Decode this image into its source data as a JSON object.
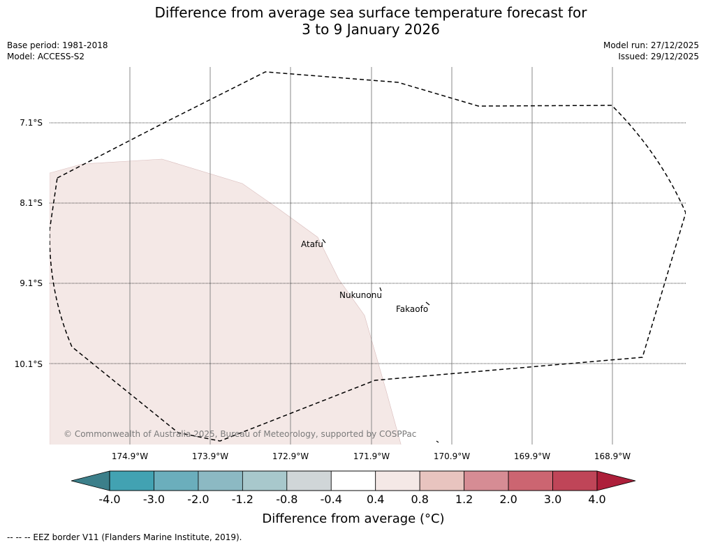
{
  "title_line1": "Difference from average sea surface temperature forecast for",
  "title_line2": "3 to 9 January 2026",
  "base_period": "Base period: 1981-2018",
  "model": "Model: ACCESS-S2",
  "model_run": "Model run: 27/12/2025",
  "issued": "Issued: 29/12/2025",
  "lat_labels": [
    "7.1°S",
    "8.1°S",
    "9.1°S",
    "10.1°S"
  ],
  "lon_labels": [
    "174.9°W",
    "173.9°W",
    "172.9°W",
    "171.9°W",
    "170.9°W",
    "169.9°W",
    "168.9°W"
  ],
  "places": [
    {
      "name": "Atafu"
    },
    {
      "name": "Nukunonu"
    },
    {
      "name": "Fakaofo"
    }
  ],
  "copyright": "© Commonwealth of Australia 2025, Bureau of Meteorology, supported by COSPPac",
  "colorbar": {
    "ticks": [
      "-4.0",
      "-3.0",
      "-2.0",
      "-1.2",
      "-0.8",
      "-0.4",
      "0.4",
      "0.8",
      "1.2",
      "2.0",
      "3.0",
      "4.0"
    ],
    "colors": [
      "#42a2b2",
      "#6baebc",
      "#8cb9c3",
      "#a8c8cc",
      "#d0d6d8",
      "#ffffff",
      "#f4e8e6",
      "#e8c4bf",
      "#d68c94",
      "#cc6571",
      "#bf4558"
    ],
    "under_color": "#3c7f8a",
    "over_color": "#ad1f3a",
    "label": "Difference from average (°C)"
  },
  "shading_color": "#f4e8e6",
  "footer": "--  --  -- EEZ border V11 (Flanders Marine Institute, 2019)."
}
